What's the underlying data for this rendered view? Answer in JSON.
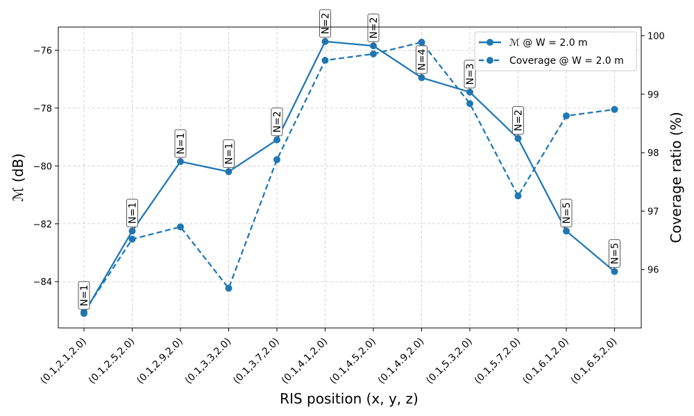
{
  "chart_data": {
    "type": "line",
    "title": "",
    "xlabel": "RIS position (x, y, z)",
    "ylabel_left": "ℳ (dB)",
    "ylabel_right": "Coverage ratio (%)",
    "categories": [
      "(0.1,2.1,2.0)",
      "(0.1,2.5,2.0)",
      "(0.1,2.9,2.0)",
      "(0.1,3.3,2.0)",
      "(0.1,3.7,2.0)",
      "(0.1,4.1,2.0)",
      "(0.1,4.5,2.0)",
      "(0.1,4.9,2.0)",
      "(0.1,5.3,2.0)",
      "(0.1,5.7,2.0)",
      "(0.1,6.1,2.0)",
      "(0.1,6.5,2.0)"
    ],
    "ylim_left": [
      -85.6,
      -75.2
    ],
    "ylim_right": [
      95.0,
      100.15
    ],
    "yticks_left": [
      -84,
      -82,
      -80,
      -78,
      -76
    ],
    "yticks_right": [
      96,
      97,
      98,
      99,
      100
    ],
    "grid": true,
    "legend_position": "top-right",
    "series": [
      {
        "name": "ℳ @ W = 2.0 m",
        "axis": "left",
        "style": "solid",
        "color": "#1f77b4",
        "values": [
          -85.1,
          -82.25,
          -79.85,
          -80.2,
          -79.1,
          -75.7,
          -75.85,
          -76.95,
          -77.45,
          -79.05,
          -82.25,
          -83.65
        ]
      },
      {
        "name": "Coverage @ W = 2.0 m",
        "axis": "right",
        "style": "dashed",
        "color": "#1f77b4",
        "values": [
          95.27,
          96.52,
          96.73,
          95.68,
          97.88,
          99.58,
          99.69,
          99.89,
          98.84,
          97.26,
          98.63,
          98.74
        ]
      }
    ],
    "annotations": [
      "N=1",
      "N=1",
      "N=1",
      "N=1",
      "N=2",
      "N=2",
      "N=2",
      "N=4",
      "N=3",
      "N=2",
      "N=5",
      "N=5"
    ]
  }
}
